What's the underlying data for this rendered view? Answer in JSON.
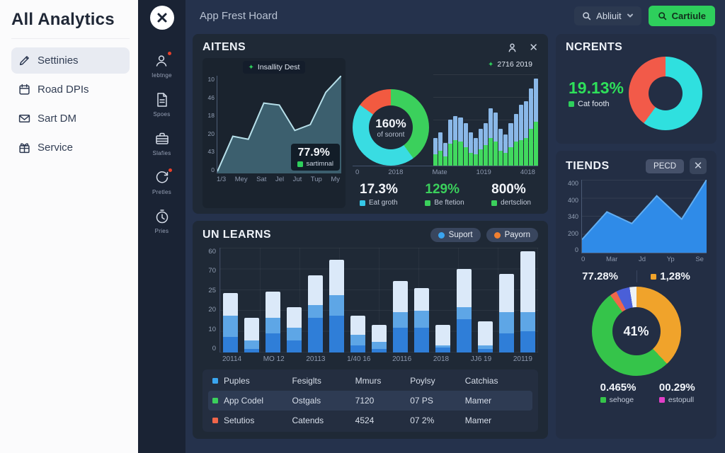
{
  "sidebar": {
    "title": "All Analytics",
    "items": [
      {
        "label": "Settinies"
      },
      {
        "label": "Road DPIs"
      },
      {
        "label": "Sart DM"
      },
      {
        "label": "Service"
      }
    ]
  },
  "rail": {
    "items": [
      {
        "label": "Iebtnge"
      },
      {
        "label": "Spoes"
      },
      {
        "label": "Slafies"
      },
      {
        "label": "Pretles"
      },
      {
        "label": "Pries"
      }
    ]
  },
  "topbar": {
    "title": "App Frest Hoard",
    "search_label": "Abliuit",
    "action_label": "Cartiule"
  },
  "aitens": {
    "title": "AITENS",
    "line_chart": {
      "type": "area",
      "badge": "Insallity Dest",
      "y_ticks": [
        "10",
        "46",
        "18",
        "20",
        "43",
        "0"
      ],
      "x_ticks": [
        "1/3",
        "Mey",
        "Sat",
        "Jel",
        "Jut",
        "Tup",
        "My"
      ],
      "values": [
        2,
        38,
        35,
        72,
        70,
        44,
        50,
        83,
        100
      ],
      "overlay_value": "77.9%",
      "overlay_label": "sartimnal",
      "overlay_marker": "#2ecf5c",
      "fill_color": "rgba(64,102,117,0.9)",
      "line_color": "#b7e0ea"
    },
    "donut": {
      "type": "pie",
      "center_value": "160%",
      "center_label": "of soront",
      "segments": [
        {
          "color": "#3bd05c",
          "pct": 40
        },
        {
          "color": "#39dce2",
          "pct": 45
        },
        {
          "color": "#f25a40",
          "pct": 15
        }
      ]
    },
    "bar_chart": {
      "type": "stacked-bar",
      "badge": "2716 2019",
      "x_ticks": [
        "0",
        "2018",
        "Mate",
        "1019",
        "4018"
      ],
      "totals": [
        30,
        36,
        25,
        50,
        54,
        52,
        46,
        36,
        30,
        40,
        46,
        62,
        58,
        40,
        34,
        46,
        56,
        66,
        70,
        84,
        95
      ],
      "greens": [
        12,
        16,
        10,
        24,
        28,
        26,
        20,
        14,
        12,
        18,
        22,
        30,
        26,
        16,
        14,
        20,
        26,
        28,
        30,
        40,
        48
      ],
      "top_color": "#8ab8e8",
      "bottom_color": "#41d95e"
    },
    "stats": [
      {
        "value": "17.3%",
        "label": "Eat groth",
        "marker": "#35c8e8",
        "value_color": "#f2f5fa"
      },
      {
        "value": "129%",
        "label": "Be ftetion",
        "marker": "#3bd05c",
        "value_color": "#3bd05c"
      },
      {
        "value": "800%",
        "label": "dertsclion",
        "marker": "#3bd05c",
        "value_color": "#f2f5fa"
      }
    ]
  },
  "unlearns": {
    "title": "UN LEARNS",
    "legend": [
      {
        "label": "Suport",
        "color": "#3aa5f0"
      },
      {
        "label": "Payorn",
        "color": "#f08030"
      }
    ],
    "chart": {
      "type": "stacked-bar",
      "y_ticks": [
        "60",
        "70",
        "25",
        "20",
        "10",
        "0"
      ],
      "x_ticks": [
        "20114",
        "MO 12",
        "20113",
        "1/40 16",
        "20116",
        "2018",
        "JJ6 19",
        "20119"
      ],
      "y_max": 60,
      "series_colors": [
        "#2f7ed8",
        "#5ea6e6",
        "#dbe9f9"
      ],
      "bars": [
        [
          9,
          12,
          13
        ],
        [
          2,
          5,
          13
        ],
        [
          11,
          9,
          15
        ],
        [
          7,
          7,
          12
        ],
        [
          20,
          7,
          17
        ],
        [
          21,
          12,
          20
        ],
        [
          4,
          6,
          11
        ],
        [
          2,
          4,
          10
        ],
        [
          14,
          9,
          18
        ],
        [
          14,
          10,
          13
        ],
        [
          3,
          1,
          12
        ],
        [
          19,
          7,
          22
        ],
        [
          2,
          2,
          14
        ],
        [
          11,
          12,
          22
        ],
        [
          12,
          11,
          35
        ]
      ]
    },
    "table": {
      "header": {
        "marker": "#3aa5f0",
        "cells": [
          "Puples",
          "Fesiglts",
          "Mmurs",
          "Poylsy",
          "Catchias"
        ]
      },
      "rows": [
        {
          "marker": "#3bd05c",
          "cells": [
            "App Codel",
            "Ostgals",
            "7120",
            "07 PS",
            "Mamer"
          ]
        },
        {
          "marker": "#f0664a",
          "cells": [
            "Setutios",
            "Catends",
            "4524",
            "07 2%",
            "Mamer"
          ]
        }
      ]
    }
  },
  "ncrents": {
    "title": "NCRENTS",
    "value": "19.13%",
    "label": "Cat footh",
    "marker": "#2ecf5c",
    "donut": {
      "type": "pie",
      "segments": [
        {
          "color": "#2fe0df",
          "pct": 60
        },
        {
          "color": "#f25a49",
          "pct": 40
        }
      ]
    }
  },
  "tiends": {
    "title": "TIENDS",
    "button": "PECD",
    "area_chart": {
      "type": "area",
      "y_ticks": [
        "400",
        "400",
        "340",
        "200",
        "0"
      ],
      "x_ticks": [
        "0",
        "Mar",
        "Jd",
        "Yp",
        "Se"
      ],
      "values": [
        18,
        56,
        40,
        78,
        46,
        100
      ],
      "fill_color": "#2f8be8",
      "line_color": "#62aef2"
    },
    "stats_top": [
      {
        "value": "77.28%"
      },
      {
        "value": "1,28%",
        "marker": "#f0a32b"
      }
    ],
    "donut": {
      "type": "pie",
      "center_value": "41%",
      "segments": [
        {
          "color": "#f0a32b",
          "pct": 38
        },
        {
          "color": "#35c44a",
          "pct": 52
        },
        {
          "color": "#f0664a",
          "pct": 2.5
        },
        {
          "color": "#4a5fd8",
          "pct": 5
        },
        {
          "color": "#eef2f6",
          "pct": 2.5
        }
      ]
    },
    "stats_bottom": [
      {
        "value": "0.465%",
        "label": "sehoge",
        "marker": "#35c44a"
      },
      {
        "value": "00.29%",
        "label": "estopull",
        "marker": "#e23fc8"
      }
    ]
  }
}
